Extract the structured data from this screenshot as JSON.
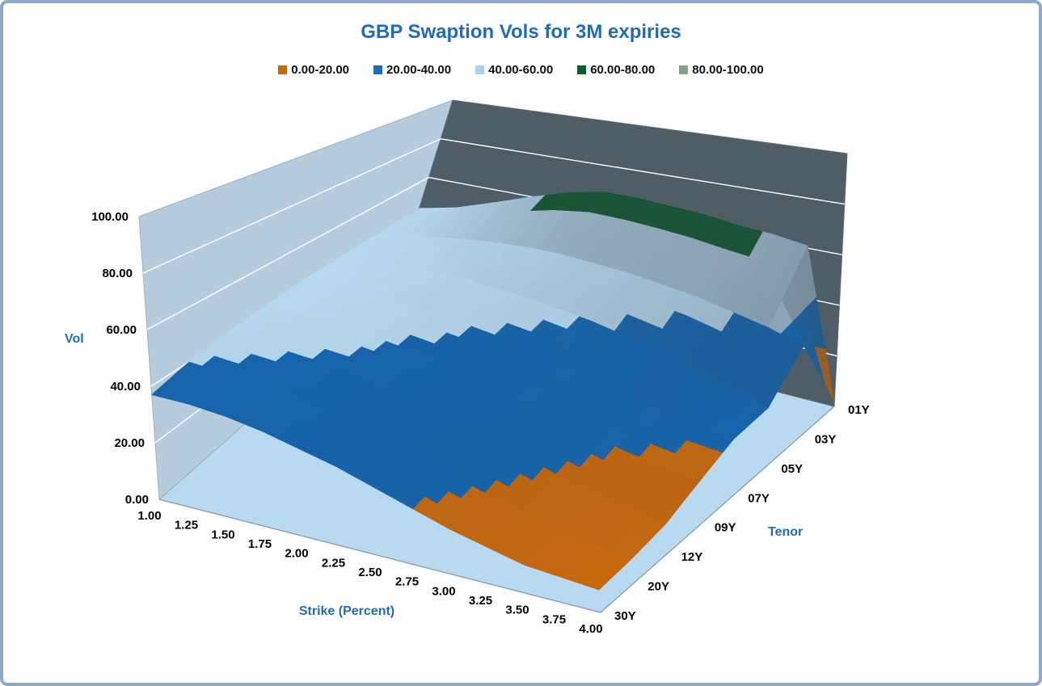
{
  "window": {
    "frame_border_color": "#8FA9C9",
    "background_color": "#FFFFFF"
  },
  "chart_data": {
    "type": "surface3d",
    "title": "GBP Swaption Vols for 3M expiries",
    "title_color": "#1F6CB5",
    "x_axis": {
      "label": "Strike (Percent)",
      "ticks": [
        "1.00",
        "1.25",
        "1.50",
        "1.75",
        "2.00",
        "2.25",
        "2.50",
        "2.75",
        "3.00",
        "3.25",
        "3.50",
        "3.75",
        "4.00"
      ]
    },
    "depth_axis": {
      "label": "Tenor",
      "ticks": [
        "01Y",
        "03Y",
        "05Y",
        "07Y",
        "09Y",
        "12Y",
        "20Y",
        "30Y"
      ]
    },
    "z_axis": {
      "label": "Vol",
      "ticks": [
        "0.00",
        "20.00",
        "40.00",
        "60.00",
        "80.00",
        "100.00"
      ],
      "range": [
        0,
        100
      ]
    },
    "legend": [
      {
        "label": "0.00-20.00",
        "color": "#C16A12"
      },
      {
        "label": "20.00-40.00",
        "color": "#1F6CB4"
      },
      {
        "label": "40.00-60.00",
        "color": "#A9D1ED"
      },
      {
        "label": "60.00-80.00",
        "color": "#0E5A2E"
      },
      {
        "label": "80.00-100.00",
        "color": "#7FA487"
      }
    ],
    "band_colors": [
      "#C8690F",
      "#1565AE",
      "#B9DAF1",
      "#0E5A2F",
      "#7FA487"
    ],
    "wall_colors": {
      "left_wall": "#B4CCDD",
      "right_wall": "#4F5D66",
      "floor": "#B8D9F0",
      "gridline": "#FFFFFF"
    },
    "x_values": [
      1.0,
      1.25,
      1.5,
      1.75,
      2.0,
      2.25,
      2.5,
      2.75,
      3.0,
      3.25,
      3.5,
      3.75,
      4.0
    ],
    "series": [
      {
        "name": "01Y",
        "values": [
          44,
          48,
          54,
          60,
          65,
          68,
          68,
          67,
          66,
          64,
          63,
          61,
          2
        ]
      },
      {
        "name": "03Y",
        "values": [
          44,
          46,
          48,
          50,
          51,
          51,
          50,
          49,
          47,
          45,
          42,
          39,
          35
        ]
      },
      {
        "name": "05Y",
        "values": [
          44,
          45,
          46,
          46,
          45,
          44,
          42,
          40,
          37,
          34,
          30,
          26,
          22
        ]
      },
      {
        "name": "07Y",
        "values": [
          44,
          44,
          44,
          43,
          42,
          40,
          38,
          35,
          32,
          28,
          24,
          22,
          21
        ]
      },
      {
        "name": "09Y",
        "values": [
          43,
          43,
          42,
          41,
          39,
          37,
          34,
          31,
          27,
          23,
          20,
          18,
          16
        ]
      },
      {
        "name": "12Y",
        "values": [
          42,
          41,
          40,
          39,
          37,
          34,
          31,
          27,
          23,
          19,
          15,
          13,
          11
        ]
      },
      {
        "name": "20Y",
        "values": [
          40,
          39,
          38,
          36,
          34,
          31,
          27,
          23,
          19,
          15,
          12,
          10,
          9
        ]
      },
      {
        "name": "30Y",
        "values": [
          37,
          37,
          36,
          34,
          31,
          28,
          24,
          20,
          16,
          13,
          10,
          9,
          8
        ]
      }
    ]
  }
}
